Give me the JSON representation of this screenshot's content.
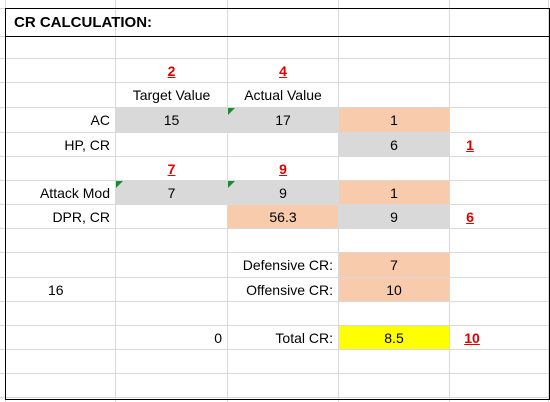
{
  "title": "CR CALCULATION:",
  "refs": {
    "target_header_ref": "2",
    "actual_header_ref": "4",
    "hp_ref": "1",
    "attack_target_ref": "7",
    "attack_actual_ref": "9",
    "dpr_ref": "6",
    "total_ref": "10"
  },
  "headers": {
    "target": "Target Value",
    "actual": "Actual Value"
  },
  "rows": {
    "ac": {
      "label": "AC",
      "target": "15",
      "actual": "17",
      "result": "1"
    },
    "hp": {
      "label": "HP, CR",
      "result": "6"
    },
    "attack": {
      "label": "Attack Mod",
      "target": "7",
      "actual": "9",
      "result": "1"
    },
    "dpr": {
      "label": "DPR, CR",
      "actual": "56.3",
      "result": "9"
    }
  },
  "summary": {
    "defensive_label": "Defensive CR:",
    "defensive_value": "7",
    "offensive_label": "Offensive CR:",
    "offensive_value": "10",
    "side_value": "16",
    "zero_value": "0",
    "total_label": "Total CR:",
    "total_value": "8.5"
  },
  "colors": {
    "grey": "#d9d9d9",
    "orange": "#f8cbad",
    "yellow": "#ffff00",
    "ref_red": "#e00000",
    "comment_green": "#1e8a36"
  }
}
